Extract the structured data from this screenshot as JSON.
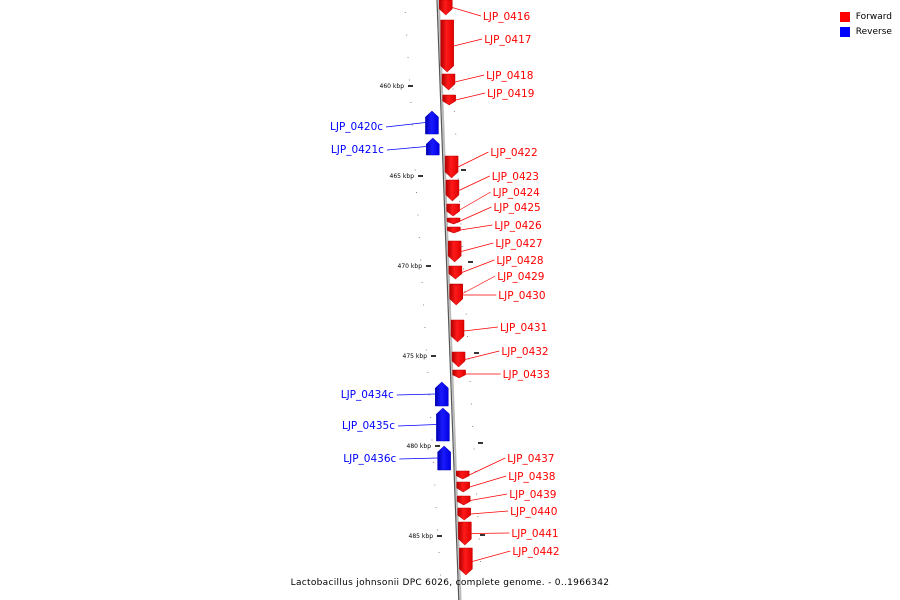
{
  "legend": [
    {
      "label": "Forward",
      "color": "#ff0000"
    },
    {
      "label": "Reverse",
      "color": "#0000ff"
    }
  ],
  "caption": "Lactobacillus johnsonii DPC 6026, complete genome. - 0..1966342",
  "colors": {
    "forward": "#ff0000",
    "reverse": "#0000ff",
    "backbone": "#999999"
  },
  "ticks": [
    {
      "label": "460 kbp",
      "kbp": 460
    },
    {
      "label": "465 kbp",
      "kbp": 465
    },
    {
      "label": "470 kbp",
      "kbp": 470
    },
    {
      "label": "475 kbp",
      "kbp": 475
    },
    {
      "label": "480 kbp",
      "kbp": 480
    },
    {
      "label": "485 kbp",
      "kbp": 485
    }
  ],
  "genes": [
    {
      "name": "LJP_0416",
      "strand": "forward"
    },
    {
      "name": "LJP_0417",
      "strand": "forward"
    },
    {
      "name": "LJP_0418",
      "strand": "forward"
    },
    {
      "name": "LJP_0419",
      "strand": "forward"
    },
    {
      "name": "LJP_0420c",
      "strand": "reverse"
    },
    {
      "name": "LJP_0421c",
      "strand": "reverse"
    },
    {
      "name": "LJP_0422",
      "strand": "forward"
    },
    {
      "name": "LJP_0423",
      "strand": "forward"
    },
    {
      "name": "LJP_0424",
      "strand": "forward"
    },
    {
      "name": "LJP_0425",
      "strand": "forward"
    },
    {
      "name": "LJP_0426",
      "strand": "forward"
    },
    {
      "name": "LJP_0427",
      "strand": "forward"
    },
    {
      "name": "LJP_0428",
      "strand": "forward"
    },
    {
      "name": "LJP_0429",
      "strand": "forward"
    },
    {
      "name": "LJP_0430",
      "strand": "forward"
    },
    {
      "name": "LJP_0431",
      "strand": "forward"
    },
    {
      "name": "LJP_0432",
      "strand": "forward"
    },
    {
      "name": "LJP_0433",
      "strand": "forward"
    },
    {
      "name": "LJP_0434c",
      "strand": "reverse"
    },
    {
      "name": "LJP_0435c",
      "strand": "reverse"
    },
    {
      "name": "LJP_0436c",
      "strand": "reverse"
    },
    {
      "name": "LJP_0437",
      "strand": "forward"
    },
    {
      "name": "LJP_0438",
      "strand": "forward"
    },
    {
      "name": "LJP_0439",
      "strand": "forward"
    },
    {
      "name": "LJP_0440",
      "strand": "forward"
    },
    {
      "name": "LJP_0441",
      "strand": "forward"
    },
    {
      "name": "LJP_0442",
      "strand": "forward"
    }
  ]
}
